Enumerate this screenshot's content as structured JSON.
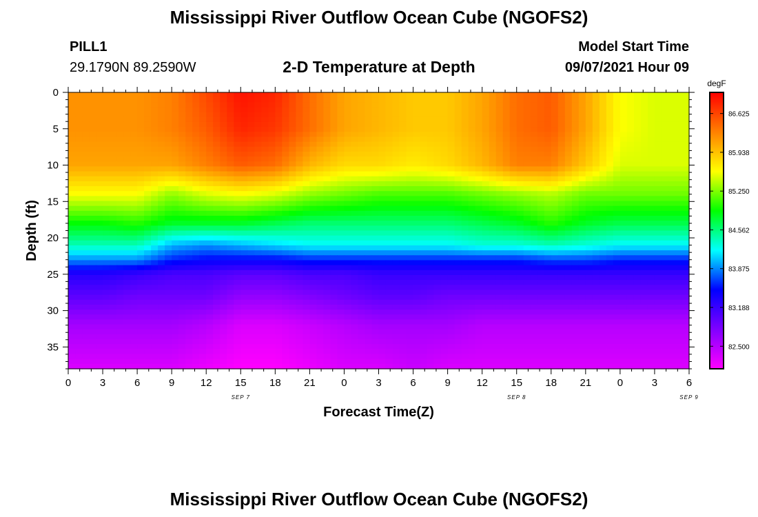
{
  "title": "Mississippi River Outflow Ocean Cube (NGOFS2)",
  "footer_title": "Mississippi River Outflow Ocean Cube (NGOFS2)",
  "header": {
    "station": "PILL1",
    "coordinates": "29.1790N  89.2590W",
    "model_start_label": "Model Start Time",
    "model_start_value": "09/07/2021 Hour 09"
  },
  "chart_data": {
    "type": "heatmap",
    "title": "2-D Temperature at Depth",
    "xlabel": "Forecast Time(Z)",
    "ylabel": "Depth (ft)",
    "x_tick_labels": [
      "0",
      "3",
      "6",
      "9",
      "12",
      "15",
      "18",
      "21",
      "0",
      "3",
      "6",
      "9",
      "12",
      "15",
      "18",
      "21",
      "0",
      "3",
      "6"
    ],
    "date_labels": [
      {
        "label": "SEP 7",
        "hour_index": 5
      },
      {
        "label": "SEP 8",
        "hour_index": 13
      },
      {
        "label": "SEP 9",
        "hour_index": 18
      }
    ],
    "x_range_hours": [
      0,
      54
    ],
    "ylim": [
      0,
      38
    ],
    "y_ticks": [
      0,
      5,
      10,
      15,
      20,
      25,
      30,
      35
    ],
    "colorbar": {
      "unit": "degF",
      "range": [
        82.1,
        87.0
      ],
      "ticks": [
        86.625,
        85.938,
        85.25,
        84.562,
        83.875,
        83.188,
        82.5
      ],
      "tick_labels": [
        "86.625",
        "85.938",
        "85.250",
        "84.562",
        "83.875",
        "83.188",
        "82.500"
      ]
    },
    "colormap": [
      "#ff00ff",
      "#8000ff",
      "#0000ff",
      "#00ffff",
      "#00ff00",
      "#ffff00",
      "#ff8000",
      "#ff0000"
    ],
    "grid": false,
    "hours": [
      0,
      3,
      6,
      9,
      12,
      15,
      18,
      21,
      24,
      27,
      30,
      33,
      36,
      39,
      42,
      45,
      48,
      51,
      54
    ],
    "depths": [
      0,
      5,
      10,
      14,
      18,
      21,
      23,
      25,
      28,
      32,
      38
    ],
    "temperature_degF": [
      [
        86.2,
        86.2,
        86.2,
        86.3,
        86.6,
        86.9,
        86.8,
        86.4,
        86.1,
        86.0,
        85.9,
        85.9,
        86.1,
        86.4,
        86.5,
        86.1,
        85.6,
        85.5,
        85.5
      ],
      [
        86.2,
        86.2,
        86.2,
        86.3,
        86.5,
        86.8,
        86.7,
        86.4,
        86.1,
        86.0,
        85.9,
        85.9,
        86.1,
        86.4,
        86.5,
        86.1,
        85.6,
        85.5,
        85.5
      ],
      [
        86.1,
        86.1,
        86.1,
        86.1,
        86.3,
        86.5,
        86.4,
        86.0,
        85.8,
        85.8,
        85.7,
        85.8,
        86.0,
        86.3,
        86.3,
        85.9,
        85.5,
        85.5,
        85.5
      ],
      [
        85.6,
        85.6,
        85.6,
        85.3,
        85.5,
        85.6,
        85.5,
        85.3,
        85.2,
        85.1,
        85.1,
        85.1,
        85.2,
        85.3,
        85.4,
        85.2,
        85.2,
        85.2,
        85.2
      ],
      [
        84.9,
        84.9,
        85.0,
        84.8,
        84.8,
        84.8,
        84.7,
        84.6,
        84.6,
        84.6,
        84.6,
        84.6,
        84.7,
        84.8,
        85.0,
        84.8,
        84.7,
        84.7,
        84.7
      ],
      [
        84.4,
        84.4,
        84.4,
        84.0,
        83.9,
        84.0,
        84.1,
        84.2,
        84.2,
        84.2,
        84.2,
        84.2,
        84.3,
        84.3,
        84.4,
        84.3,
        84.2,
        84.2,
        84.2
      ],
      [
        83.9,
        83.9,
        83.9,
        83.6,
        83.5,
        83.5,
        83.5,
        83.6,
        83.6,
        83.6,
        83.6,
        83.6,
        83.6,
        83.6,
        83.7,
        83.7,
        83.6,
        83.6,
        83.6
      ],
      [
        83.3,
        83.3,
        83.2,
        83.1,
        83.1,
        83.0,
        83.0,
        83.1,
        83.1,
        83.2,
        83.2,
        83.2,
        83.2,
        83.2,
        83.2,
        83.2,
        83.2,
        83.2,
        83.2
      ],
      [
        83.0,
        83.0,
        82.9,
        82.9,
        82.9,
        82.7,
        82.7,
        82.8,
        82.9,
        83.0,
        83.0,
        82.9,
        82.9,
        82.9,
        82.9,
        82.9,
        82.9,
        82.9,
        82.9
      ],
      [
        82.6,
        82.6,
        82.6,
        82.6,
        82.5,
        82.3,
        82.3,
        82.4,
        82.5,
        82.6,
        82.6,
        82.6,
        82.5,
        82.5,
        82.5,
        82.5,
        82.5,
        82.5,
        82.5
      ],
      [
        82.3,
        82.3,
        82.3,
        82.3,
        82.2,
        82.1,
        82.1,
        82.2,
        82.3,
        82.3,
        82.4,
        82.3,
        82.3,
        82.3,
        82.3,
        82.3,
        82.3,
        82.3,
        82.3
      ]
    ]
  }
}
